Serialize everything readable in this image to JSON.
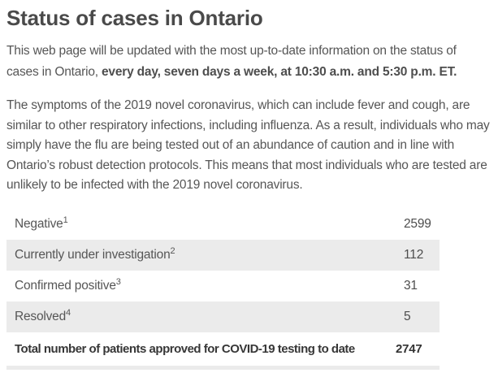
{
  "page": {
    "title": "Status of cases in Ontario"
  },
  "intro": {
    "text_normal": "This web page will be updated with the most up-to-date information on the status of cases in Ontario, ",
    "text_bold": "every day, seven days a week, at 10:30 a.m. and 5:30 p.m. ET."
  },
  "symptoms_paragraph": "The symptoms of the 2019 novel coronavirus, which can include fever and cough, are similar to other respiratory infections, including influenza. As a result, individuals who may simply have the flu are being tested out of an abundance of caution and in line with Ontario’s robust detection protocols. This means that most individuals who are tested are unlikely to be infected with the 2019 novel coronavirus.",
  "status_table": {
    "rows": [
      {
        "label": "Negative",
        "footnote": "1",
        "value": "2599"
      },
      {
        "label": "Currently under investigation",
        "footnote": "2",
        "value": "112"
      },
      {
        "label": "Confirmed positive",
        "footnote": "3",
        "value": "31"
      },
      {
        "label": "Resolved",
        "footnote": "4",
        "value": "5"
      }
    ],
    "total_row": {
      "label": "Total number of patients approved for COVID-19 testing to date",
      "value": "2747"
    }
  },
  "colors": {
    "row_stripe": "#ebebeb",
    "heading_text": "#4a4a4a",
    "body_text": "#565656"
  }
}
